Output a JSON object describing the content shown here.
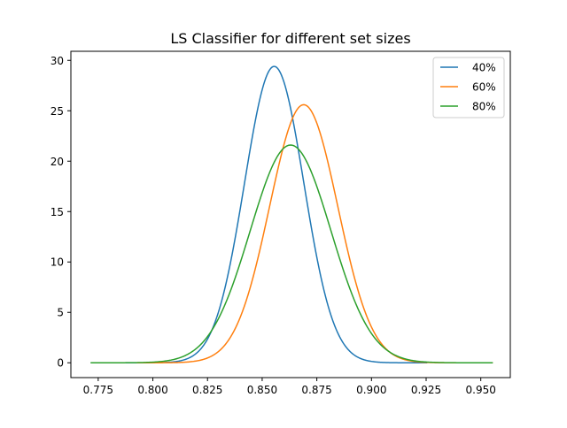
{
  "chart_data": {
    "type": "line",
    "title": "LS Classifier for different set sizes",
    "xlabel": "",
    "ylabel": "",
    "xlim": [
      0.7625,
      0.9635
    ],
    "ylim": [
      -1.47,
      30.9
    ],
    "xticks": [
      0.775,
      0.8,
      0.825,
      0.85,
      0.875,
      0.9,
      0.925,
      0.95
    ],
    "xtick_labels": [
      "0.775",
      "0.800",
      "0.825",
      "0.850",
      "0.875",
      "0.900",
      "0.925",
      "0.950"
    ],
    "yticks": [
      0,
      5,
      10,
      15,
      20,
      25,
      30
    ],
    "ytick_labels": [
      "0",
      "5",
      "10",
      "15",
      "20",
      "25",
      "30"
    ],
    "grid": false,
    "legend_position": "top-right",
    "series": [
      {
        "name": "40%",
        "color": "#1f77b4",
        "mean": 0.8555,
        "peak": 29.4,
        "x_range": [
          0.7875,
          0.9255
        ]
      },
      {
        "name": "60%",
        "color": "#ff7f0e",
        "mean": 0.869,
        "peak": 25.6,
        "x_range": [
          0.7925,
          0.9555
        ]
      },
      {
        "name": "80%",
        "color": "#2ca02c",
        "mean": 0.863,
        "peak": 21.6,
        "x_range": [
          0.7715,
          0.9555
        ]
      }
    ]
  }
}
